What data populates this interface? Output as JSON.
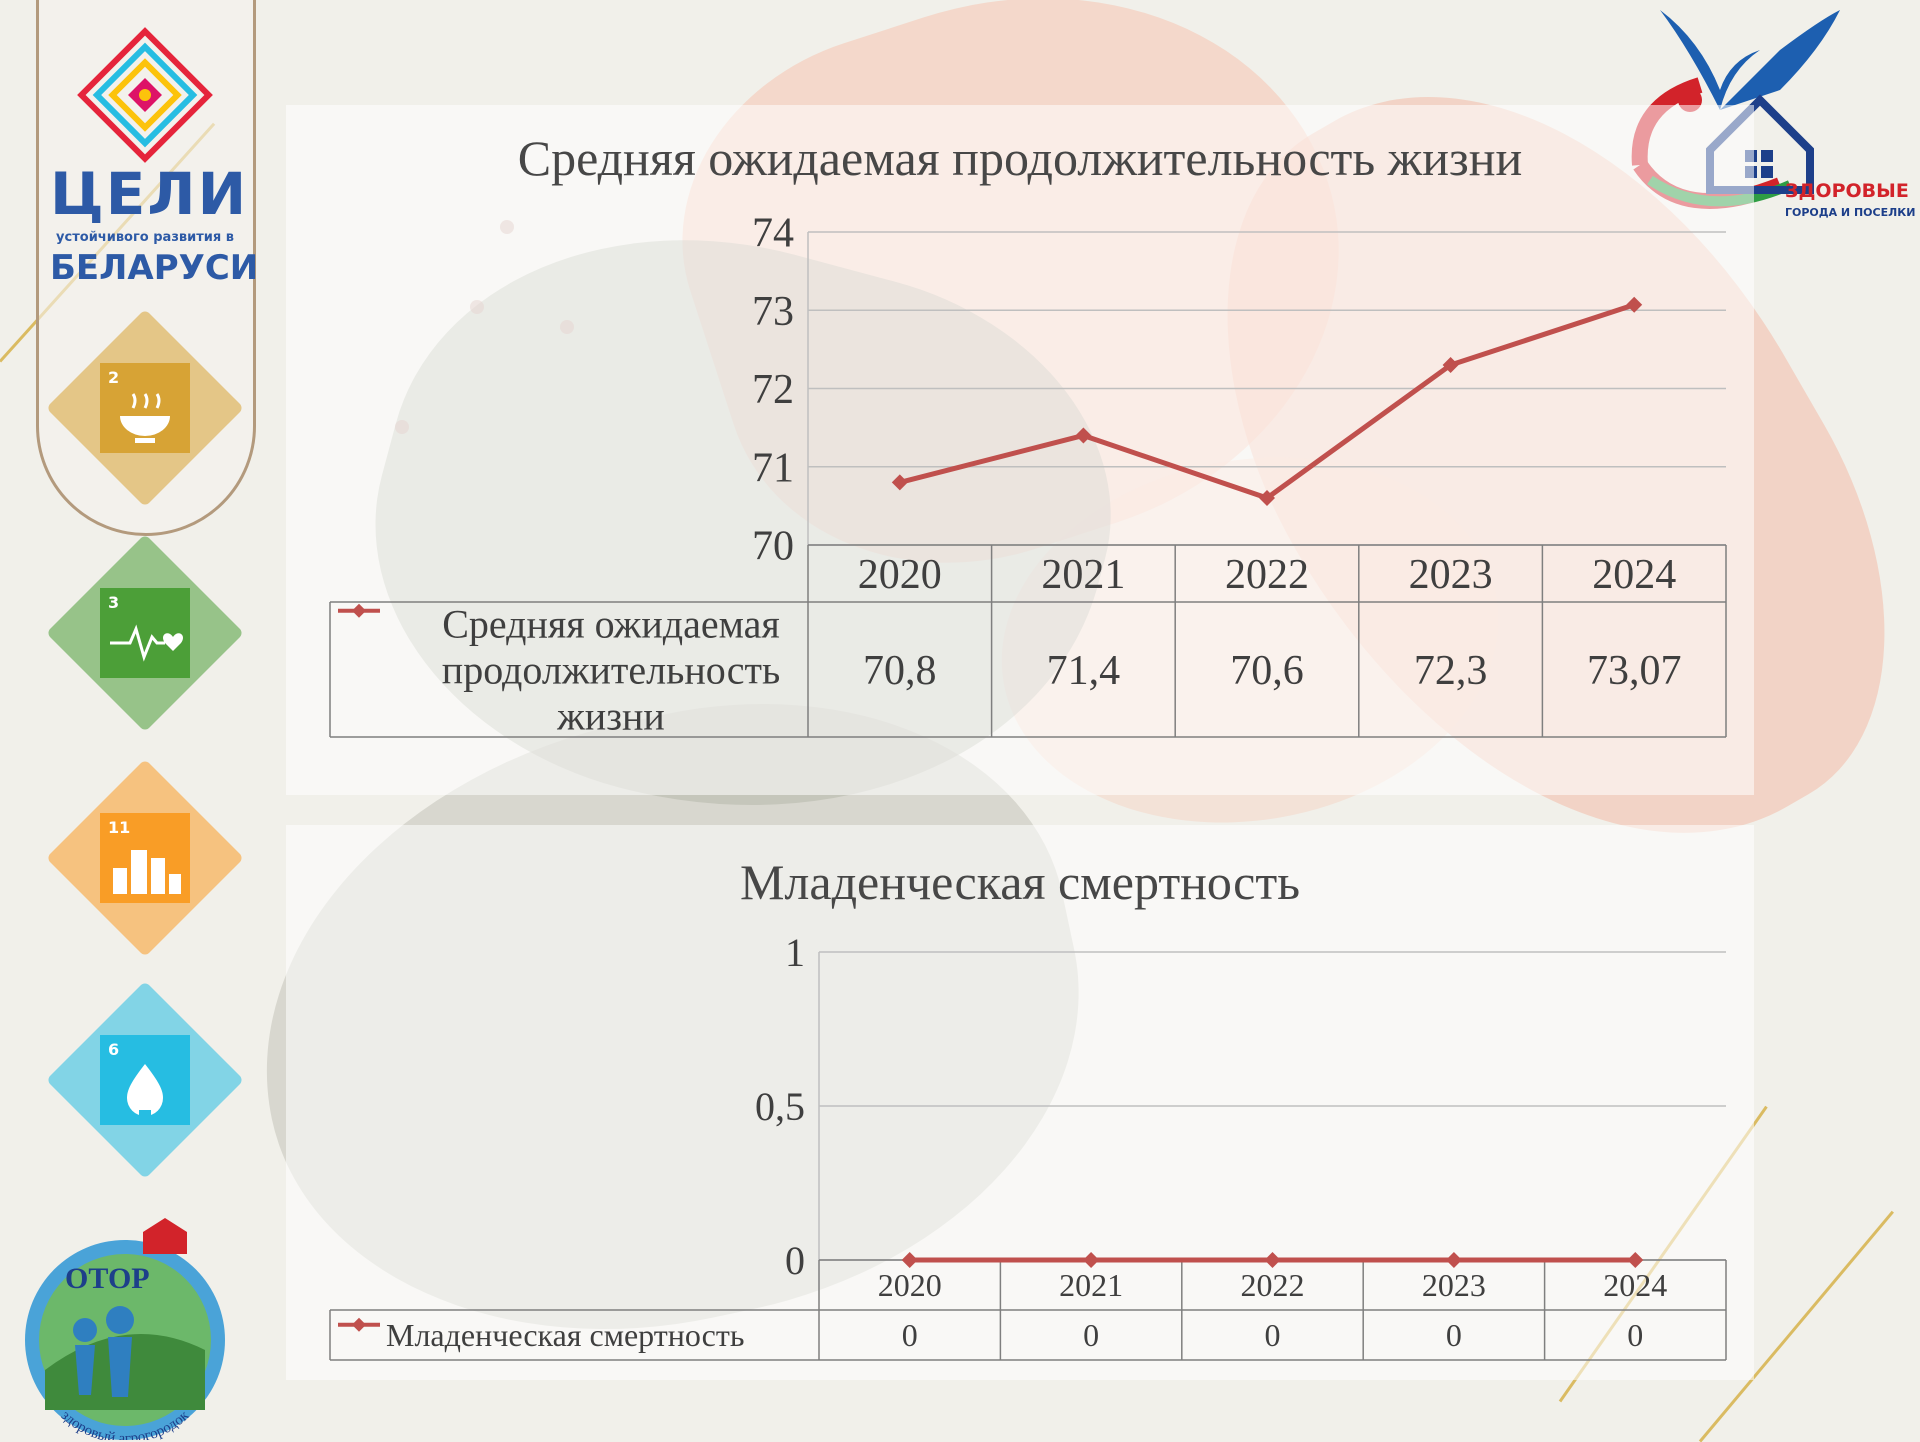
{
  "colors": {
    "series": "#c0504d",
    "grid": "#bfbfbf",
    "table_border": "#7f7f7f"
  },
  "left_logo": {
    "title": "ЦЕЛИ",
    "subtitle": "устойчивого развития в",
    "country": "БЕЛАРУСИ"
  },
  "sdg_icons": [
    {
      "number": "2",
      "icon": "bowl-icon",
      "color": "#d7a335"
    },
    {
      "number": "3",
      "icon": "heartbeat-icon",
      "color": "#4c9f38"
    },
    {
      "number": "11",
      "icon": "city-icon",
      "color": "#f99d26"
    },
    {
      "number": "6",
      "icon": "water-drop-icon",
      "color": "#26bde2"
    }
  ],
  "otor_logo": {
    "label": "ОТОР",
    "ring_text": "здоровый агрогородок"
  },
  "right_logo": {
    "title": "ЗДОРОВЫЕ",
    "subtitle": "ГОРОДА И ПОСЕЛКИ"
  },
  "chart_data": [
    {
      "type": "line",
      "title": "Средняя ожидаемая продолжительность жизни",
      "categories": [
        "2020",
        "2021",
        "2022",
        "2023",
        "2024"
      ],
      "ylim": [
        70,
        74
      ],
      "yticks": [
        "70",
        "71",
        "72",
        "73",
        "74"
      ],
      "series": [
        {
          "name": "Средняя ожидаемая продолжительность жизни",
          "name_lines": [
            "Средняя ожидаемая",
            "продолжительность",
            "жизни"
          ],
          "values": [
            70.8,
            71.4,
            70.6,
            72.3,
            73.07
          ],
          "labels": [
            "70,8",
            "71,4",
            "70,6",
            "72,3",
            "73,07"
          ]
        }
      ],
      "grid": true,
      "data_table": true
    },
    {
      "type": "line",
      "title": "Младенческая смертность",
      "categories": [
        "2020",
        "2021",
        "2022",
        "2023",
        "2024"
      ],
      "ylim": [
        0,
        1
      ],
      "yticks": [
        "0",
        "0,5",
        "1"
      ],
      "series": [
        {
          "name": "Младенческая смертность",
          "name_lines": [
            "Младенческая смертность"
          ],
          "values": [
            0,
            0,
            0,
            0,
            0
          ],
          "labels": [
            "0",
            "0",
            "0",
            "0",
            "0"
          ]
        }
      ],
      "grid": true,
      "data_table": true
    }
  ]
}
